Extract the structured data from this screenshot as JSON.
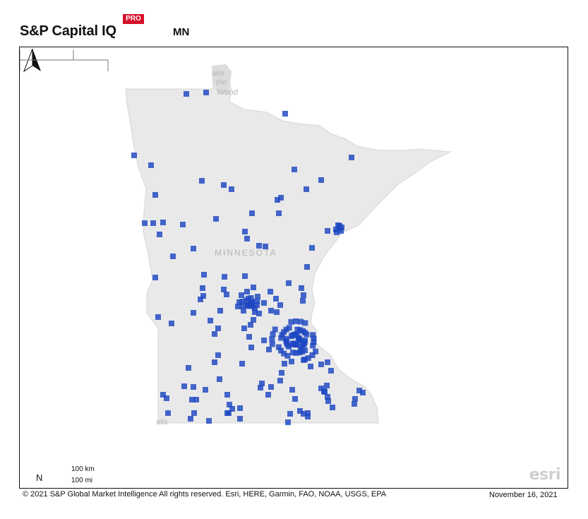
{
  "header": {
    "brand": "S&P Capital IQ",
    "badge": "PRO",
    "title": "MN"
  },
  "map": {
    "basemap_labels": {
      "lake_line1": "ake",
      "lake_line2": "the",
      "lake_line3": "Wood",
      "state": "MINNESOTA",
      "falls": "alls"
    },
    "north_label": "N",
    "scale_km": "100 km",
    "scale_mi": "100 mi",
    "esri": "esri",
    "marker_color": "#1d47c2",
    "land_color": "#e9e9e9"
  },
  "footer": {
    "copyright": "© 2021 S&P Global Market Intelligence All rights reserved. Esri, HERE, Garmin, FAO, NOAA, USGS, EPA",
    "date": "November 16, 2021"
  }
}
